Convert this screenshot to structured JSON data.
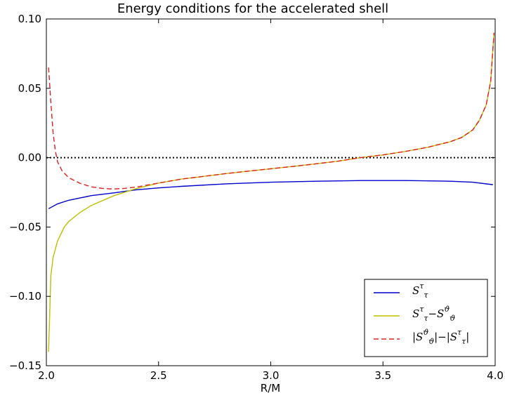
{
  "chart_data": {
    "type": "line",
    "title": "Energy conditions for the accelerated shell",
    "xlabel": "R/M",
    "ylabel": "",
    "xlim": [
      2.0,
      4.0
    ],
    "ylim": [
      -0.15,
      0.1
    ],
    "x_ticks": [
      2.0,
      2.5,
      3.0,
      3.5,
      4.0
    ],
    "x_tick_labels": [
      "2.0",
      "2.5",
      "3.0",
      "3.5",
      "4.0"
    ],
    "y_ticks": [
      -0.15,
      -0.1,
      -0.05,
      0.0,
      0.05,
      0.1
    ],
    "y_tick_labels": [
      "−0.15",
      "−0.10",
      "−0.05",
      "0.00",
      "0.05",
      "0.10"
    ],
    "reference_line": {
      "y": 0.0,
      "style": "dotted",
      "color": "#000000"
    },
    "legend_position": "lower-right",
    "series": [
      {
        "name": "S^τ_τ",
        "legend": {
          "base": "S",
          "sup": "τ",
          "sub": "τ",
          "tail": ""
        },
        "color": "#0000cc",
        "style": "solid",
        "x": [
          2.01,
          2.05,
          2.1,
          2.2,
          2.3,
          2.4,
          2.5,
          2.6,
          2.8,
          3.0,
          3.2,
          3.4,
          3.6,
          3.8,
          3.9,
          3.99
        ],
        "y": [
          -0.0368,
          -0.0333,
          -0.0307,
          -0.0274,
          -0.0254,
          -0.0232,
          -0.0218,
          -0.0207,
          -0.0189,
          -0.0177,
          -0.017,
          -0.0165,
          -0.0165,
          -0.017,
          -0.0177,
          -0.0195
        ]
      },
      {
        "name": "S^τ_τ−S^ϑ_ϑ",
        "legend": {
          "base": "S",
          "sup": "τ",
          "sub": "τ",
          "tail": "−S",
          "sup2": "ϑ",
          "sub2": "ϑ"
        },
        "color": "#bfbf00",
        "style": "solid",
        "x": [
          2.01,
          2.02,
          2.03,
          2.05,
          2.08,
          2.1,
          2.15,
          2.2,
          2.3,
          2.4,
          2.5,
          2.6,
          2.7,
          2.8,
          2.9,
          3.0,
          3.1,
          3.2,
          3.3,
          3.4,
          3.5,
          3.6,
          3.7,
          3.8,
          3.85,
          3.9,
          3.93,
          3.96,
          3.98,
          3.995
        ],
        "y": [
          -0.14,
          -0.085,
          -0.072,
          -0.06,
          -0.05,
          -0.046,
          -0.0395,
          -0.0345,
          -0.0275,
          -0.0223,
          -0.0183,
          -0.0155,
          -0.0135,
          -0.0115,
          -0.0097,
          -0.008,
          -0.0063,
          -0.0045,
          -0.0025,
          0.0,
          0.002,
          0.0045,
          0.0075,
          0.0115,
          0.0145,
          0.02,
          0.027,
          0.038,
          0.055,
          0.09
        ]
      },
      {
        "name": "|S^ϑ_ϑ|−|S^τ_τ|",
        "legend": {
          "base": "|S",
          "sup": "ϑ",
          "sub": "ϑ",
          "tail": "|−|S",
          "sup2": "τ",
          "sub2": "τ",
          "end": "|"
        },
        "color": "#e02020",
        "style": "dashed",
        "x": [
          2.01,
          2.02,
          2.03,
          2.04,
          2.05,
          2.07,
          2.1,
          2.15,
          2.2,
          2.25,
          2.3,
          2.35,
          2.4,
          2.5,
          2.6,
          2.7,
          2.8,
          2.9,
          3.0,
          3.1,
          3.2,
          3.3,
          3.4,
          3.5,
          3.6,
          3.7,
          3.8,
          3.85,
          3.9,
          3.93,
          3.96,
          3.98,
          3.995
        ],
        "y": [
          0.065,
          0.04,
          0.018,
          0.005,
          -0.003,
          -0.0095,
          -0.0145,
          -0.0185,
          -0.021,
          -0.0222,
          -0.0226,
          -0.0221,
          -0.0212,
          -0.0183,
          -0.0155,
          -0.0135,
          -0.0115,
          -0.0097,
          -0.008,
          -0.0063,
          -0.0045,
          -0.0025,
          0.0,
          0.002,
          0.0045,
          0.0075,
          0.0115,
          0.0145,
          0.02,
          0.027,
          0.038,
          0.055,
          0.09
        ]
      }
    ]
  }
}
